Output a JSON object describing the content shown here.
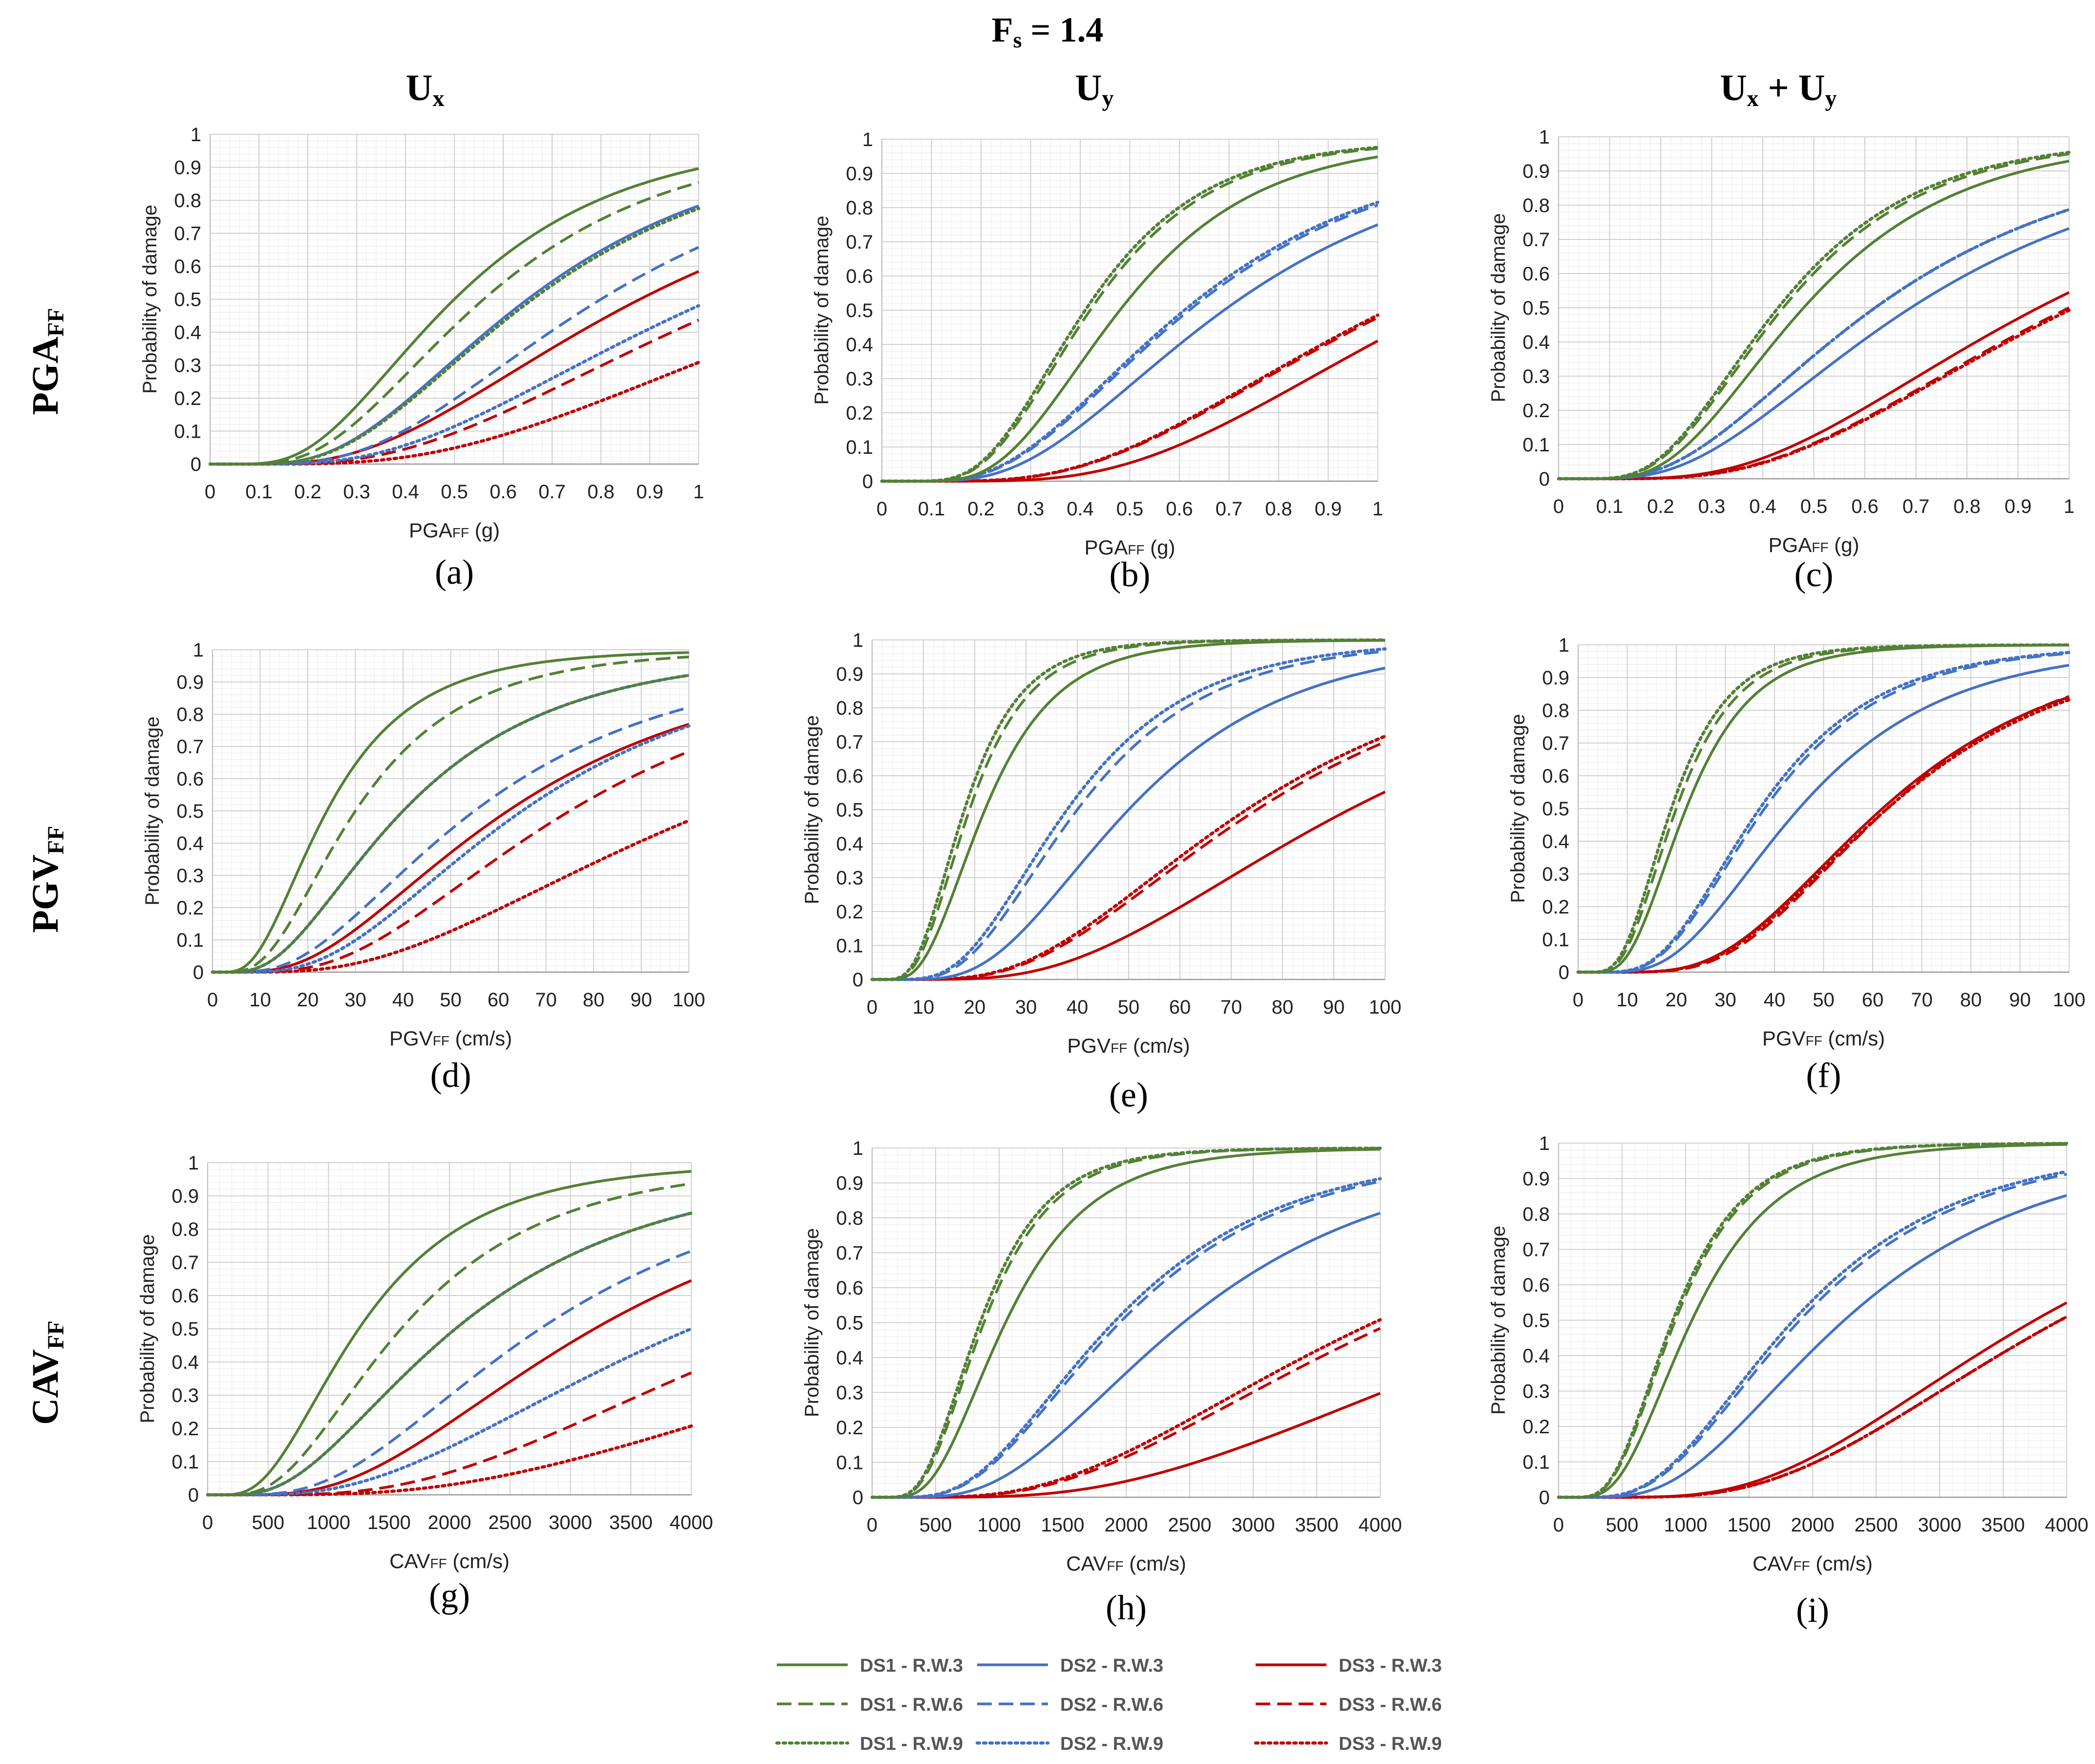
{
  "figure": {
    "title_main": "F",
    "title_sub": "s",
    "title_rest": " = 1.4",
    "columns": [
      {
        "label": "U",
        "sub": "x",
        "tail": "",
        "sub2": ""
      },
      {
        "label": "U",
        "sub": "y",
        "tail": "",
        "sub2": ""
      },
      {
        "label": "U",
        "sub": "x",
        "tail": " + U",
        "sub2": "y"
      }
    ],
    "rows": [
      {
        "label": "PGA",
        "sub": "FF"
      },
      {
        "label": "PGV",
        "sub": "FF"
      },
      {
        "label": "CAV",
        "sub": "FF"
      }
    ]
  },
  "colors": {
    "DS1": "#538135",
    "DS2": "#4472c4",
    "DS3": "#c00000"
  },
  "legend": [
    {
      "label": "DS1 - R.W.3",
      "color": "#538135",
      "dash": "solid"
    },
    {
      "label": "DS2 - R.W.3",
      "color": "#4472c4",
      "dash": "solid"
    },
    {
      "label": "DS3 - R.W.3",
      "color": "#c00000",
      "dash": "solid"
    },
    {
      "label": "DS1 - R.W.6",
      "color": "#538135",
      "dash": "dashed"
    },
    {
      "label": "DS2 - R.W.6",
      "color": "#4472c4",
      "dash": "dashed"
    },
    {
      "label": "DS3 - R.W.6",
      "color": "#c00000",
      "dash": "dashed"
    },
    {
      "label": "DS1 - R.W.9",
      "color": "#538135",
      "dash": "dotted"
    },
    {
      "label": "DS2 - R.W.9",
      "color": "#4472c4",
      "dash": "dotted"
    },
    {
      "label": "DS3 - R.W.9",
      "color": "#c00000",
      "dash": "dotted"
    }
  ],
  "chart_data": [
    {
      "id": "a",
      "panel_label": "(a)",
      "type": "line",
      "curve": "lognormal-cdf",
      "xlabel": "PGA",
      "xlabel_sub": "FF",
      "xlabel_unit": " (g)",
      "ylabel": "Probability of damage",
      "xlim": [
        0,
        1
      ],
      "ylim": [
        0,
        1
      ],
      "xticks": [
        0,
        0.1,
        0.2,
        0.3,
        0.4,
        0.5,
        0.6,
        0.7,
        0.8,
        0.9,
        1
      ],
      "yticks": [
        0,
        0.1,
        0.2,
        0.3,
        0.4,
        0.5,
        0.6,
        0.7,
        0.8,
        0.9,
        1
      ],
      "series": [
        {
          "name": "DS1 - R.W.3",
          "median": 0.5,
          "beta": 0.55
        },
        {
          "name": "DS1 - R.W.6",
          "median": 0.56,
          "beta": 0.55
        },
        {
          "name": "DS1 - R.W.9",
          "median": 0.66,
          "beta": 0.55
        },
        {
          "name": "DS2 - R.W.3",
          "median": 0.65,
          "beta": 0.55
        },
        {
          "name": "DS2 - R.W.6",
          "median": 0.8,
          "beta": 0.55
        },
        {
          "name": "DS2 - R.W.9",
          "median": 1.03,
          "beta": 0.6
        },
        {
          "name": "DS3 - R.W.3",
          "median": 0.88,
          "beta": 0.6
        },
        {
          "name": "DS3 - R.W.6",
          "median": 1.1,
          "beta": 0.6
        },
        {
          "name": "DS3 - R.W.9",
          "median": 1.35,
          "beta": 0.6
        }
      ]
    },
    {
      "id": "b",
      "panel_label": "(b)",
      "type": "line",
      "curve": "lognormal-cdf",
      "xlabel": "PGA",
      "xlabel_sub": "FF",
      "xlabel_unit": " (g)",
      "ylabel": "Probability of damage",
      "xlim": [
        0,
        1
      ],
      "ylim": [
        0,
        1
      ],
      "xticks": [
        0,
        0.1,
        0.2,
        0.3,
        0.4,
        0.5,
        0.6,
        0.7,
        0.8,
        0.9,
        1
      ],
      "yticks": [
        0,
        0.1,
        0.2,
        0.3,
        0.4,
        0.5,
        0.6,
        0.7,
        0.8,
        0.9,
        1
      ],
      "series": [
        {
          "name": "DS1 - R.W.3",
          "median": 0.48,
          "beta": 0.45
        },
        {
          "name": "DS1 - R.W.6",
          "median": 0.42,
          "beta": 0.45
        },
        {
          "name": "DS1 - R.W.9",
          "median": 0.41,
          "beta": 0.45
        },
        {
          "name": "DS2 - R.W.3",
          "median": 0.69,
          "beta": 0.55
        },
        {
          "name": "DS2 - R.W.6",
          "median": 0.62,
          "beta": 0.55
        },
        {
          "name": "DS2 - R.W.9",
          "median": 0.61,
          "beta": 0.55
        },
        {
          "name": "DS3 - R.W.3",
          "median": 1.12,
          "beta": 0.5
        },
        {
          "name": "DS3 - R.W.6",
          "median": 1.03,
          "beta": 0.55
        },
        {
          "name": "DS3 - R.W.9",
          "median": 1.02,
          "beta": 0.55
        }
      ]
    },
    {
      "id": "c",
      "panel_label": "(c)",
      "type": "line",
      "curve": "lognormal-cdf",
      "xlabel": "PGA",
      "xlabel_sub": "FF",
      "xlabel_unit": " (g)",
      "ylabel": "Probability of damage",
      "xlim": [
        0,
        1
      ],
      "ylim": [
        0,
        1
      ],
      "xticks": [
        0,
        0.1,
        0.2,
        0.3,
        0.4,
        0.5,
        0.6,
        0.7,
        0.8,
        0.9,
        1
      ],
      "yticks": [
        0,
        0.1,
        0.2,
        0.3,
        0.4,
        0.5,
        0.6,
        0.7,
        0.8,
        0.9,
        1
      ],
      "series": [
        {
          "name": "DS1 - R.W.3",
          "median": 0.48,
          "beta": 0.5
        },
        {
          "name": "DS1 - R.W.6",
          "median": 0.44,
          "beta": 0.5
        },
        {
          "name": "DS1 - R.W.9",
          "median": 0.43,
          "beta": 0.5
        },
        {
          "name": "DS2 - R.W.3",
          "median": 0.69,
          "beta": 0.6
        },
        {
          "name": "DS2 - R.W.6",
          "median": 0.62,
          "beta": 0.6
        },
        {
          "name": "DS2 - R.W.9",
          "median": 0.62,
          "beta": 0.6
        },
        {
          "name": "DS3 - R.W.3",
          "median": 0.94,
          "beta": 0.55
        },
        {
          "name": "DS3 - R.W.6",
          "median": 1.0,
          "beta": 0.55
        },
        {
          "name": "DS3 - R.W.9",
          "median": 1.01,
          "beta": 0.55
        }
      ]
    },
    {
      "id": "d",
      "panel_label": "(d)",
      "type": "line",
      "curve": "lognormal-cdf",
      "xlabel": "PGV",
      "xlabel_sub": "FF",
      "xlabel_unit": " (cm/s)",
      "ylabel": "Probability of damage",
      "xlim": [
        0,
        100
      ],
      "ylim": [
        0,
        1
      ],
      "xticks": [
        0,
        10,
        20,
        30,
        40,
        50,
        60,
        70,
        80,
        90,
        100
      ],
      "yticks": [
        0,
        0.1,
        0.2,
        0.3,
        0.4,
        0.5,
        0.6,
        0.7,
        0.8,
        0.9,
        1
      ],
      "series": [
        {
          "name": "DS1 - R.W.3",
          "median": 24,
          "beta": 0.6
        },
        {
          "name": "DS1 - R.W.6",
          "median": 30,
          "beta": 0.6
        },
        {
          "name": "DS1 - R.W.9",
          "median": 40,
          "beta": 0.65
        },
        {
          "name": "DS2 - R.W.3",
          "median": 40,
          "beta": 0.65
        },
        {
          "name": "DS2 - R.W.6",
          "median": 55,
          "beta": 0.65
        },
        {
          "name": "DS2 - R.W.9",
          "median": 65,
          "beta": 0.6
        },
        {
          "name": "DS3 - R.W.3",
          "median": 62,
          "beta": 0.65
        },
        {
          "name": "DS3 - R.W.6",
          "median": 75,
          "beta": 0.6
        },
        {
          "name": "DS3 - R.W.9",
          "median": 105,
          "beta": 0.65
        }
      ]
    },
    {
      "id": "e",
      "panel_label": "(e)",
      "type": "line",
      "curve": "lognormal-cdf",
      "xlabel": "PGV",
      "xlabel_sub": "FF",
      "xlabel_unit": " (cm/s)",
      "ylabel": "Probability of damage",
      "xlim": [
        0,
        100
      ],
      "ylim": [
        0,
        1
      ],
      "xticks": [
        0,
        10,
        20,
        30,
        40,
        50,
        60,
        70,
        80,
        90,
        100
      ],
      "yticks": [
        0,
        0.1,
        0.2,
        0.3,
        0.4,
        0.5,
        0.6,
        0.7,
        0.8,
        0.9,
        1
      ],
      "series": [
        {
          "name": "DS1 - R.W.3",
          "median": 22,
          "beta": 0.5
        },
        {
          "name": "DS1 - R.W.6",
          "median": 19,
          "beta": 0.48
        },
        {
          "name": "DS1 - R.W.9",
          "median": 18,
          "beta": 0.48
        },
        {
          "name": "DS2 - R.W.3",
          "median": 50,
          "beta": 0.5
        },
        {
          "name": "DS2 - R.W.6",
          "median": 40,
          "beta": 0.5
        },
        {
          "name": "DS2 - R.W.9",
          "median": 38,
          "beta": 0.5
        },
        {
          "name": "DS3 - R.W.3",
          "median": 93,
          "beta": 0.55
        },
        {
          "name": "DS3 - R.W.6",
          "median": 75,
          "beta": 0.55
        },
        {
          "name": "DS3 - R.W.9",
          "median": 73,
          "beta": 0.55
        }
      ]
    },
    {
      "id": "f",
      "panel_label": "(f)",
      "type": "line",
      "curve": "lognormal-cdf",
      "xlabel": "PGV",
      "xlabel_sub": "FF",
      "xlabel_unit": " (cm/s)",
      "ylabel": "Probability of damage",
      "xlim": [
        0,
        100
      ],
      "ylim": [
        0,
        1
      ],
      "xticks": [
        0,
        10,
        20,
        30,
        40,
        50,
        60,
        70,
        80,
        90,
        100
      ],
      "yticks": [
        0,
        0.1,
        0.2,
        0.3,
        0.4,
        0.5,
        0.6,
        0.7,
        0.8,
        0.9,
        1
      ],
      "series": [
        {
          "name": "DS1 - R.W.3",
          "median": 22,
          "beta": 0.48
        },
        {
          "name": "DS1 - R.W.6",
          "median": 20,
          "beta": 0.48
        },
        {
          "name": "DS1 - R.W.9",
          "median": 19,
          "beta": 0.48
        },
        {
          "name": "DS2 - R.W.3",
          "median": 45,
          "beta": 0.52
        },
        {
          "name": "DS2 - R.W.6",
          "median": 38,
          "beta": 0.5
        },
        {
          "name": "DS2 - R.W.9",
          "median": 37,
          "beta": 0.5
        },
        {
          "name": "DS3 - R.W.3",
          "median": 62,
          "beta": 0.48
        },
        {
          "name": "DS3 - R.W.6",
          "median": 63,
          "beta": 0.46
        },
        {
          "name": "DS3 - R.W.9",
          "median": 63,
          "beta": 0.48
        }
      ]
    },
    {
      "id": "g",
      "panel_label": "(g)",
      "type": "line",
      "curve": "lognormal-cdf",
      "xlabel": "CAV",
      "xlabel_sub": "FF",
      "xlabel_unit": " (cm/s)",
      "ylabel": "Probability of damage",
      "xlim": [
        0,
        4000
      ],
      "ylim": [
        0,
        1
      ],
      "xticks": [
        0,
        500,
        1000,
        1500,
        2000,
        2500,
        3000,
        3500,
        4000
      ],
      "yticks": [
        0,
        0.1,
        0.2,
        0.3,
        0.4,
        0.5,
        0.6,
        0.7,
        0.8,
        0.9,
        1
      ],
      "series": [
        {
          "name": "DS1 - R.W.3",
          "median": 1250,
          "beta": 0.6
        },
        {
          "name": "DS1 - R.W.6",
          "median": 1600,
          "beta": 0.6
        },
        {
          "name": "DS1 - R.W.9",
          "median": 2050,
          "beta": 0.65
        },
        {
          "name": "DS2 - R.W.3",
          "median": 2050,
          "beta": 0.65
        },
        {
          "name": "DS2 - R.W.6",
          "median": 2750,
          "beta": 0.6
        },
        {
          "name": "DS2 - R.W.9",
          "median": 4000,
          "beta": 0.65
        },
        {
          "name": "DS3 - R.W.3",
          "median": 3200,
          "beta": 0.6
        },
        {
          "name": "DS3 - R.W.6",
          "median": 4900,
          "beta": 0.6
        },
        {
          "name": "DS3 - R.W.9",
          "median": 6800,
          "beta": 0.65
        }
      ]
    },
    {
      "id": "h",
      "panel_label": "(h)",
      "type": "line",
      "curve": "lognormal-cdf",
      "xlabel": "CAV",
      "xlabel_sub": "FF",
      "xlabel_unit": " (cm/s)",
      "ylabel": "Probability of damage",
      "xlim": [
        0,
        4000
      ],
      "ylim": [
        0,
        1
      ],
      "xticks": [
        0,
        500,
        1000,
        1500,
        2000,
        2500,
        3000,
        3500,
        4000
      ],
      "yticks": [
        0,
        0.1,
        0.2,
        0.3,
        0.4,
        0.5,
        0.6,
        0.7,
        0.8,
        0.9,
        1
      ],
      "series": [
        {
          "name": "DS1 - R.W.3",
          "median": 1050,
          "beta": 0.5
        },
        {
          "name": "DS1 - R.W.6",
          "median": 880,
          "beta": 0.48
        },
        {
          "name": "DS1 - R.W.9",
          "median": 850,
          "beta": 0.48
        },
        {
          "name": "DS2 - R.W.3",
          "median": 2450,
          "beta": 0.55
        },
        {
          "name": "DS2 - R.W.6",
          "median": 1950,
          "beta": 0.55
        },
        {
          "name": "DS2 - R.W.9",
          "median": 1900,
          "beta": 0.55
        },
        {
          "name": "DS3 - R.W.3",
          "median": 5500,
          "beta": 0.6
        },
        {
          "name": "DS3 - R.W.6",
          "median": 4100,
          "beta": 0.6
        },
        {
          "name": "DS3 - R.W.9",
          "median": 3950,
          "beta": 0.6
        }
      ]
    },
    {
      "id": "i",
      "panel_label": "(i)",
      "type": "line",
      "curve": "lognormal-cdf",
      "xlabel": "CAV",
      "xlabel_sub": "FF",
      "xlabel_unit": " (cm/s)",
      "ylabel": "Probability of damage",
      "xlim": [
        0,
        4000
      ],
      "ylim": [
        0,
        1
      ],
      "xticks": [
        0,
        500,
        1000,
        1500,
        2000,
        2500,
        3000,
        3500,
        4000
      ],
      "yticks": [
        0,
        0.1,
        0.2,
        0.3,
        0.4,
        0.5,
        0.6,
        0.7,
        0.8,
        0.9,
        1
      ],
      "series": [
        {
          "name": "DS1 - R.W.3",
          "median": 1050,
          "beta": 0.5
        },
        {
          "name": "DS1 - R.W.6",
          "median": 920,
          "beta": 0.48
        },
        {
          "name": "DS1 - R.W.9",
          "median": 900,
          "beta": 0.48
        },
        {
          "name": "DS2 - R.W.3",
          "median": 2250,
          "beta": 0.55
        },
        {
          "name": "DS2 - R.W.6",
          "median": 1900,
          "beta": 0.55
        },
        {
          "name": "DS2 - R.W.9",
          "median": 1850,
          "beta": 0.55
        },
        {
          "name": "DS3 - R.W.3",
          "median": 3750,
          "beta": 0.52
        },
        {
          "name": "DS3 - R.W.6",
          "median": 3950,
          "beta": 0.52
        },
        {
          "name": "DS3 - R.W.9",
          "median": 3950,
          "beta": 0.52
        }
      ]
    }
  ]
}
